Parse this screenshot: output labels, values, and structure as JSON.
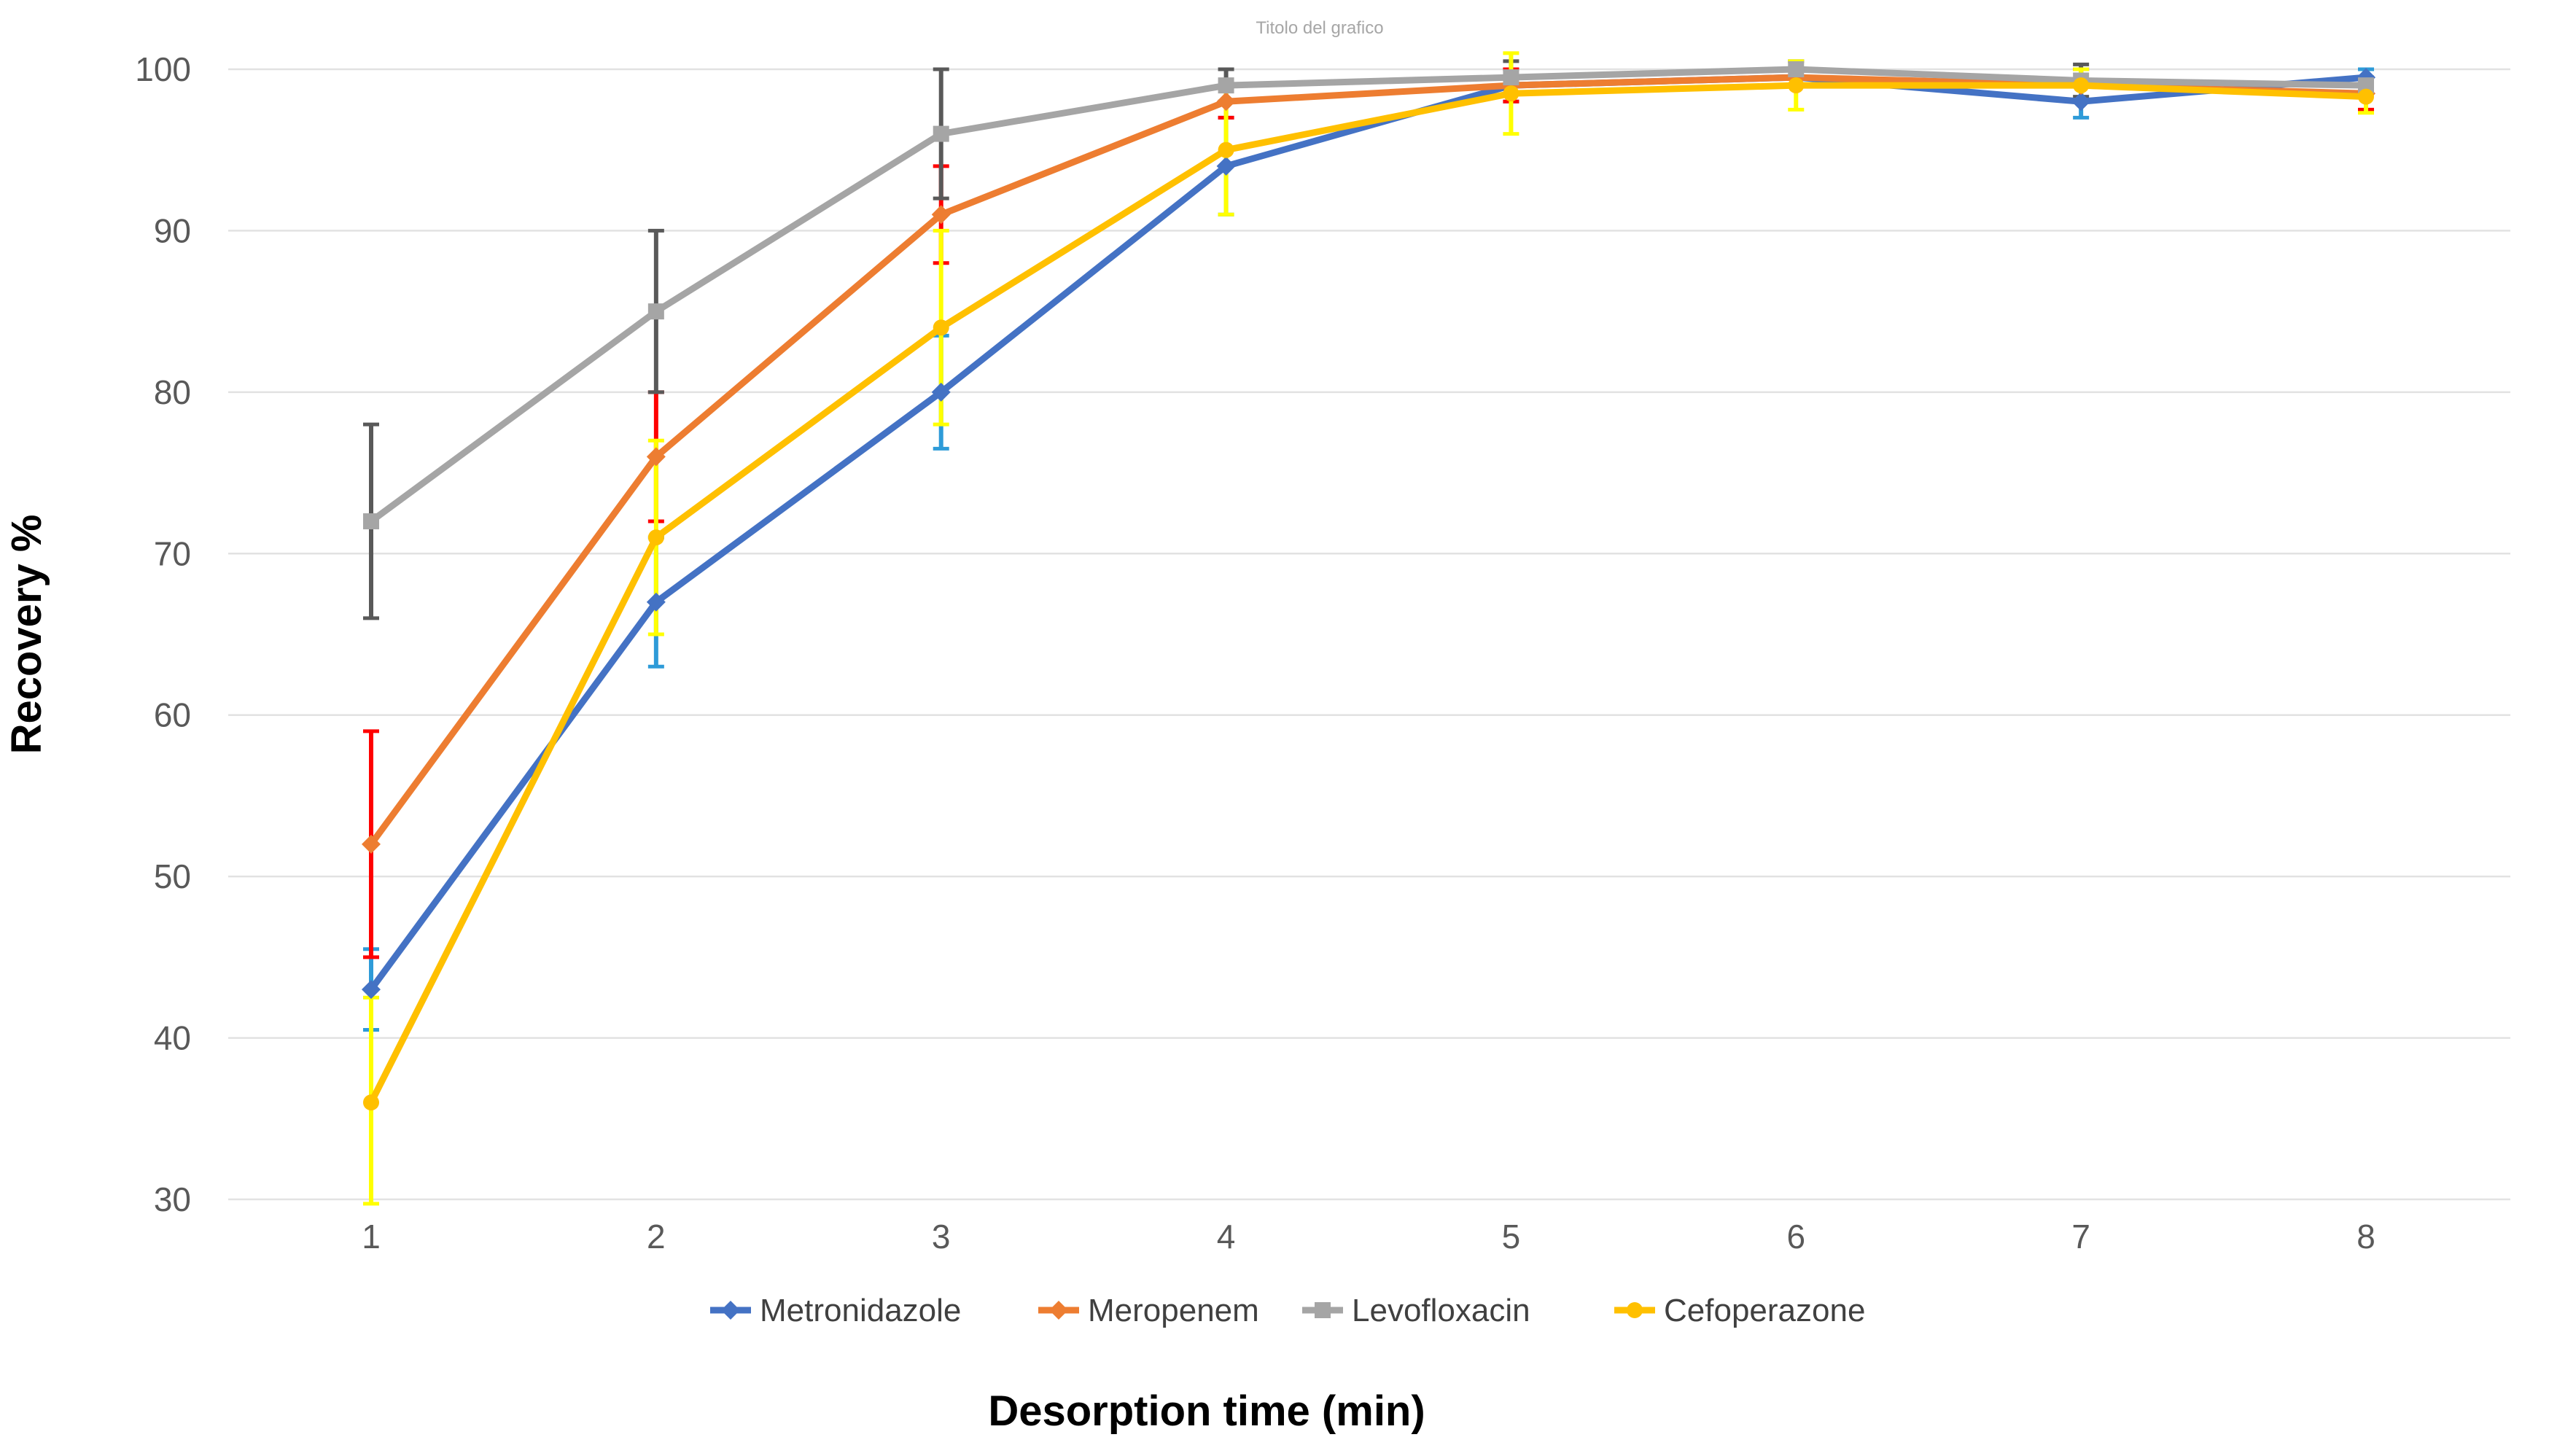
{
  "chart_data": {
    "type": "line",
    "title": "Titolo del grafico",
    "xlabel": "Desorption time (min)",
    "ylabel": "Recovery %",
    "x": [
      1,
      2,
      3,
      4,
      5,
      6,
      7,
      8
    ],
    "ylim": [
      30,
      100
    ],
    "ytick_step": 10,
    "ytick_labels": [
      "30",
      "40",
      "50",
      "60",
      "70",
      "80",
      "90",
      "100"
    ],
    "grid": true,
    "legend_position": "bottom-center",
    "series": [
      {
        "name": "Metronidazole",
        "color": "#4472C4",
        "marker": "diamond",
        "error_color": "#2E9BD8",
        "values": [
          43,
          67,
          80,
          94,
          99,
          99.5,
          98,
          99.5
        ],
        "error": [
          2.5,
          4,
          3.5,
          3,
          1,
          0.5,
          1,
          0.5
        ]
      },
      {
        "name": "Meropenem",
        "color": "#ED7D31",
        "marker": "diamond",
        "error_color": "#FF0000",
        "values": [
          52,
          76,
          91,
          98,
          99,
          99.5,
          99,
          98.5
        ],
        "error": [
          7,
          4,
          3,
          1,
          1,
          0.5,
          1,
          1
        ]
      },
      {
        "name": "Levofloxacin",
        "color": "#A5A5A5",
        "marker": "square",
        "error_color": "#595959",
        "values": [
          72,
          85,
          96,
          99,
          99.5,
          100,
          99.3,
          99
        ],
        "error": [
          6,
          5,
          4,
          1,
          1,
          0.5,
          1,
          0.5
        ]
      },
      {
        "name": "Cefoperazone",
        "color": "#FFC000",
        "marker": "circle",
        "error_color": "#FFFF00",
        "values": [
          36,
          71,
          84,
          95,
          98.5,
          99,
          99,
          98.3
        ],
        "error": [
          6.5,
          6,
          6,
          4,
          2.5,
          1.5,
          1,
          1
        ]
      }
    ]
  },
  "colors": {
    "background": "#FFFFFF",
    "gridline": "#E2E2E2",
    "tick_label": "#595959",
    "legend_text": "#404040",
    "chart_title": "#A6A6A6",
    "axis_title": "#000000"
  }
}
